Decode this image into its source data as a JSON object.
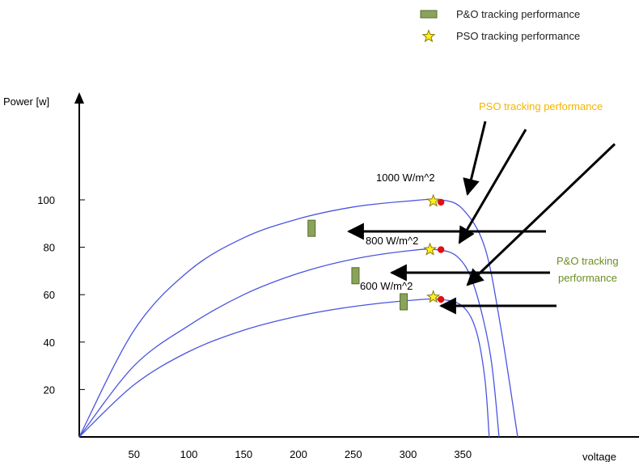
{
  "legend": [
    {
      "label": "P&O tracking performance",
      "marker": "green-rectangle",
      "color": "#8aa35a"
    },
    {
      "label": "PSO tracking performance",
      "marker": "yellow-star",
      "color": "#ffee22"
    }
  ],
  "chart_data": {
    "type": "line",
    "ylabel": "Power [w]",
    "xlabel": "voltage",
    "xlim": [
      0,
      400
    ],
    "ylim": [
      0,
      120
    ],
    "x_ticks": [
      50,
      100,
      150,
      200,
      250,
      300,
      350
    ],
    "y_ticks": [
      20,
      40,
      60,
      80,
      100
    ],
    "grid": false,
    "series": [
      {
        "name": "1000 W/m^2",
        "points": [
          [
            0,
            0
          ],
          [
            50,
            45
          ],
          [
            100,
            70
          ],
          [
            150,
            84
          ],
          [
            200,
            92
          ],
          [
            250,
            97
          ],
          [
            300,
            99.5
          ],
          [
            330,
            100
          ],
          [
            350,
            96
          ],
          [
            370,
            80
          ],
          [
            385,
            45
          ],
          [
            400,
            0
          ]
        ],
        "po_marker": [
          212,
          88
        ],
        "pso_marker": [
          323,
          99.5
        ],
        "mpp": [
          330,
          99
        ]
      },
      {
        "name": "800 W/m^2",
        "points": [
          [
            0,
            0
          ],
          [
            50,
            30
          ],
          [
            100,
            47
          ],
          [
            150,
            60
          ],
          [
            200,
            69
          ],
          [
            250,
            75
          ],
          [
            300,
            78.5
          ],
          [
            325,
            79
          ],
          [
            345,
            76
          ],
          [
            360,
            64
          ],
          [
            375,
            35
          ],
          [
            383,
            0
          ]
        ],
        "po_marker": [
          252,
          68
        ],
        "pso_marker": [
          320,
          79
        ],
        "mpp": [
          330,
          79
        ]
      },
      {
        "name": "600 W/m^2",
        "points": [
          [
            0,
            0
          ],
          [
            50,
            22
          ],
          [
            100,
            36
          ],
          [
            150,
            45
          ],
          [
            200,
            51
          ],
          [
            250,
            55
          ],
          [
            300,
            57.5
          ],
          [
            330,
            58
          ],
          [
            350,
            55
          ],
          [
            362,
            45
          ],
          [
            370,
            25
          ],
          [
            374,
            0
          ]
        ],
        "po_marker": [
          296,
          57
        ],
        "pso_marker": [
          323,
          59
        ],
        "mpp": [
          330,
          58
        ]
      }
    ],
    "annotations": [
      {
        "text": "PSO tracking performance",
        "color": "#f5b300"
      },
      {
        "text": "P&O tracking",
        "color": "#6b8e23"
      },
      {
        "text": "performance",
        "color": "#6b8e23"
      }
    ]
  },
  "colors": {
    "curve": "#4a55e0",
    "axis": "#000000",
    "mpp_point": "#e01010",
    "po_marker_fill": "#8aa35a",
    "pso_star_fill": "#ffee22",
    "pso_label": "#f5b300",
    "po_label": "#6b8e23"
  }
}
